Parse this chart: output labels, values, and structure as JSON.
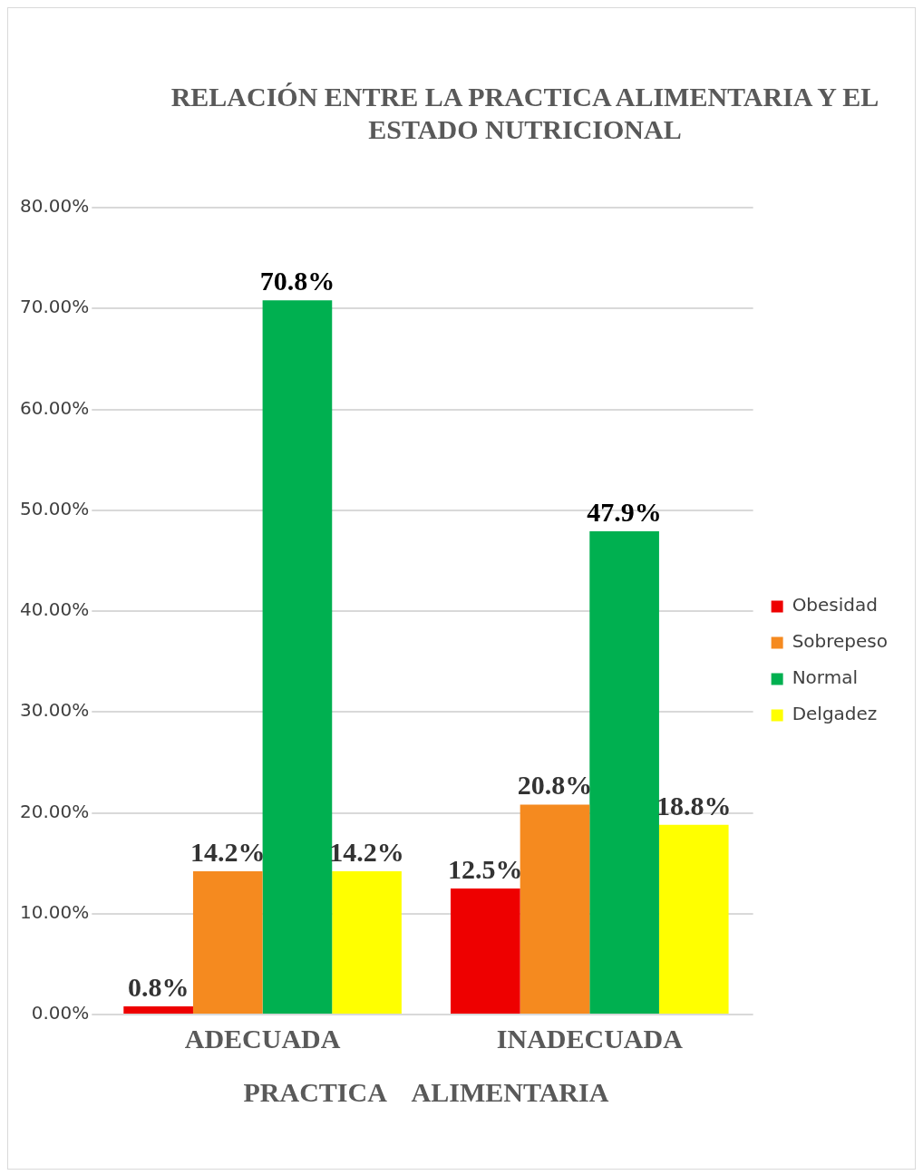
{
  "chart_data": {
    "type": "bar",
    "title": "RELACIÓN ENTRE LA PRACTICA ALIMENTARIA Y EL ESTADO NUTRICIONAL",
    "xlabel": "PRACTICA    ALIMENTARIA",
    "categories": [
      "ADECUADA",
      "INADECUADA"
    ],
    "series": [
      {
        "name": "Obesidad",
        "color": "#ee0000",
        "values": [
          0.8,
          12.5
        ],
        "value_labels": [
          "0.8%",
          "12.5%"
        ]
      },
      {
        "name": "Sobrepeso",
        "color": "#f58a1f",
        "values": [
          14.2,
          20.8
        ],
        "value_labels": [
          "14.2%",
          "20.8%"
        ]
      },
      {
        "name": "Normal",
        "color": "#00b050",
        "values": [
          70.8,
          47.9
        ],
        "value_labels": [
          "70.8%",
          "47.9%"
        ]
      },
      {
        "name": "Delgadez",
        "color": "#ffff00",
        "values": [
          14.2,
          18.8
        ],
        "value_labels": [
          "14.2%",
          "18.8%"
        ]
      }
    ],
    "ylim": [
      0,
      80
    ],
    "yticks": [
      {
        "value": 0,
        "label": "0.00%"
      },
      {
        "value": 10,
        "label": "10.00%"
      },
      {
        "value": 20,
        "label": "20.00%"
      },
      {
        "value": 30,
        "label": "30.00%"
      },
      {
        "value": 40,
        "label": "40.00%"
      },
      {
        "value": 50,
        "label": "50.00%"
      },
      {
        "value": 60,
        "label": "60.00%"
      },
      {
        "value": 70,
        "label": "70.00%"
      },
      {
        "value": 80,
        "label": "80.00%"
      }
    ],
    "grid": "y",
    "legend": "right"
  }
}
